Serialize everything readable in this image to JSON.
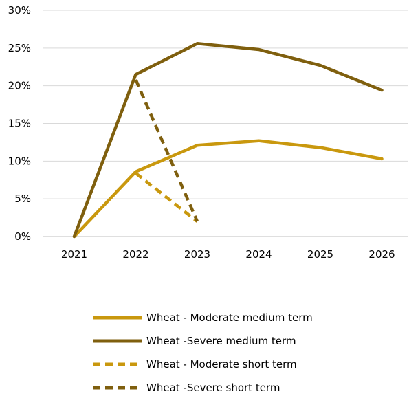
{
  "chart_data": {
    "type": "line",
    "title": "",
    "xlabel": "",
    "ylabel": "",
    "categories": [
      "2021",
      "2022",
      "2023",
      "2024",
      "2025",
      "2026"
    ],
    "ylim": [
      0,
      30
    ],
    "yticks": [
      0,
      5,
      10,
      15,
      20,
      25,
      30
    ],
    "ytick_labels": [
      "0%",
      "5%",
      "10%",
      "15%",
      "20%",
      "25%",
      "30%"
    ],
    "grid": "horizontal",
    "legend_position": "bottom",
    "series": [
      {
        "name": "Wheat - Moderate medium term",
        "color": "#c9980e",
        "dash": "solid",
        "values": [
          0,
          8.6,
          12.1,
          12.7,
          11.8,
          10.3
        ]
      },
      {
        "name": "Wheat -Severe medium term",
        "color": "#7f5f0e",
        "dash": "solid",
        "values": [
          0,
          21.5,
          25.6,
          24.8,
          22.7,
          19.4
        ]
      },
      {
        "name": "Wheat - Moderate short term",
        "color": "#c9980e",
        "dash": "dashed",
        "values": [
          null,
          8.4,
          2.0,
          null,
          null,
          null
        ]
      },
      {
        "name": "Wheat -Severe short term",
        "color": "#7f5f0e",
        "dash": "dashed",
        "values": [
          null,
          20.8,
          2.0,
          null,
          null,
          null
        ]
      }
    ]
  }
}
